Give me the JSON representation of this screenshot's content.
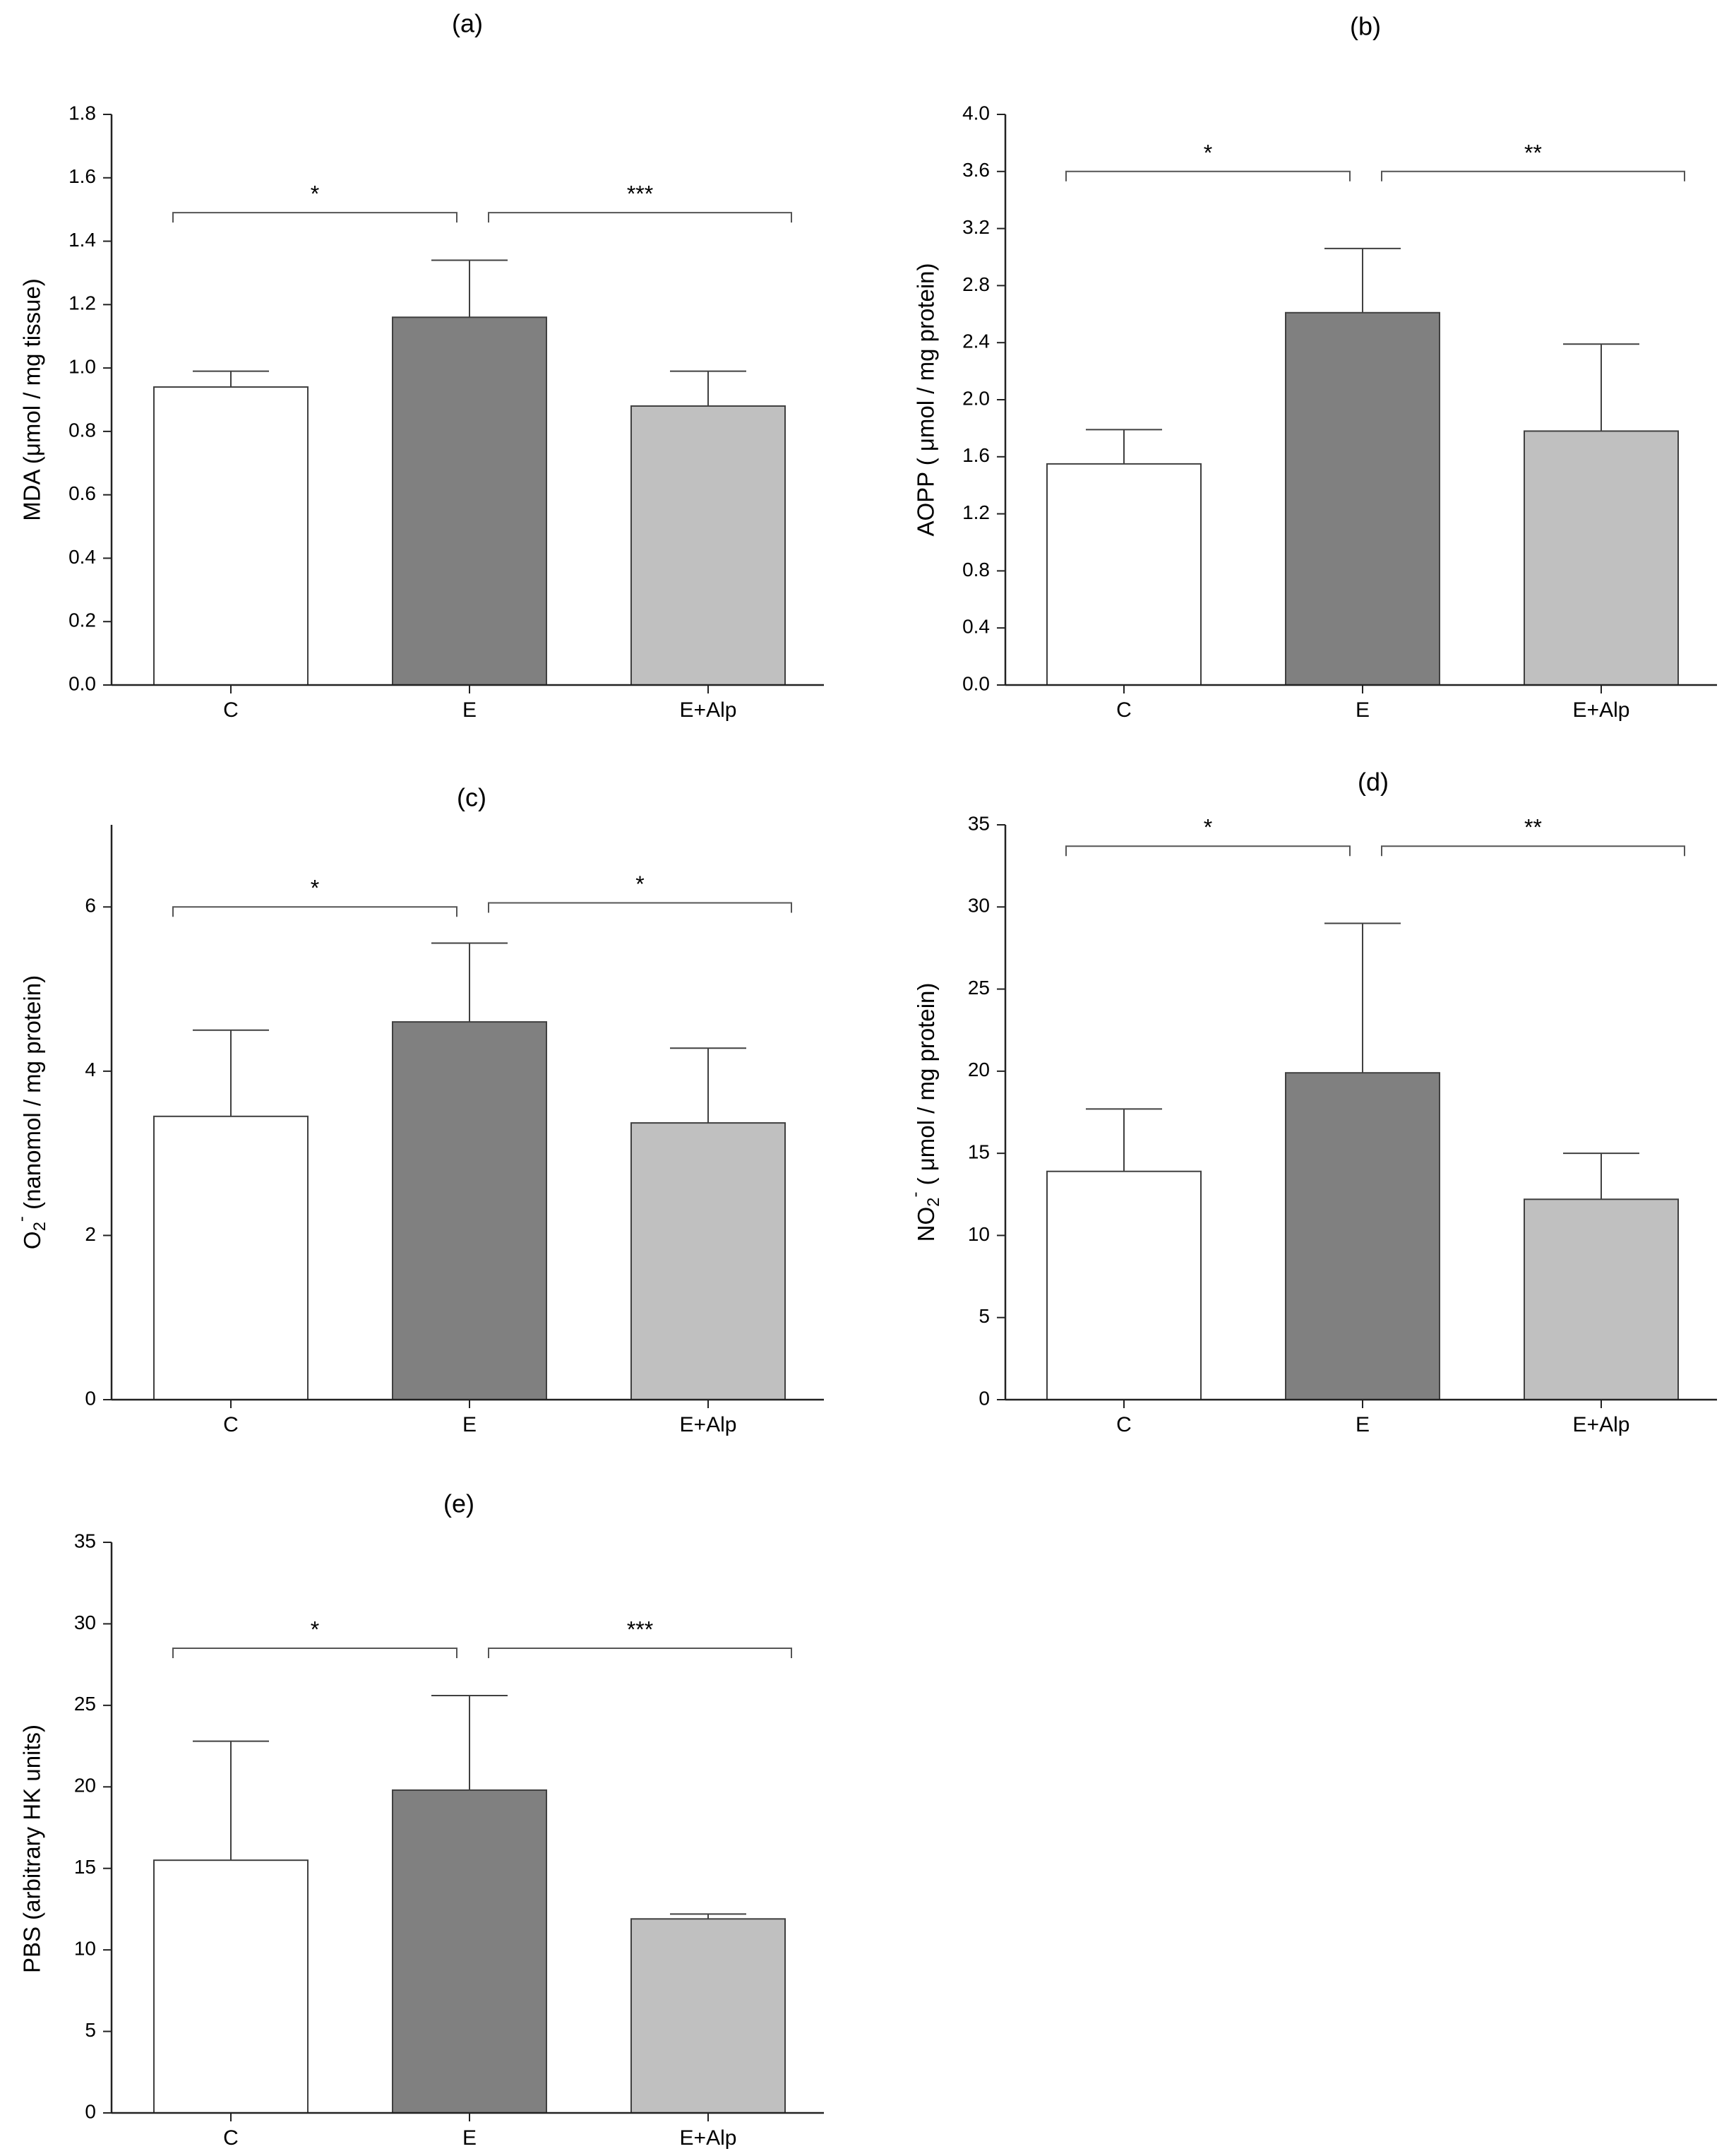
{
  "colors": {
    "C": "#ffffff",
    "E": "#808080",
    "E+Alp": "#c0c0c0",
    "stroke": "#404040"
  },
  "chart_data": [
    {
      "id": "a",
      "type": "bar",
      "panel_label": "(a)",
      "ylabel": "MDA (μmol / mg tissue)",
      "categories": [
        "C",
        "E",
        "E+Alp"
      ],
      "values": [
        0.94,
        1.16,
        0.88
      ],
      "errors": [
        0.05,
        0.18,
        0.11
      ],
      "ylim": [
        0,
        1.8
      ],
      "yticks": [
        0,
        0.2,
        0.4,
        0.6,
        0.8,
        1.0,
        1.2,
        1.4,
        1.6,
        1.8
      ],
      "tick_labels": [
        "0.0",
        "0.2",
        "0.4",
        "0.6",
        "0.8",
        "1.0",
        "1.2",
        "1.4",
        "1.6",
        "1.8"
      ],
      "significance": [
        {
          "from": 0,
          "to": 1,
          "label": "*",
          "y": 1.49
        },
        {
          "from": 1,
          "to": 2,
          "label": "***",
          "y": 1.49
        }
      ]
    },
    {
      "id": "b",
      "type": "bar",
      "panel_label": "(b)",
      "ylabel": "AOPP ( μmol / mg protein)",
      "categories": [
        "C",
        "E",
        "E+Alp"
      ],
      "values": [
        1.55,
        2.61,
        1.78
      ],
      "errors": [
        0.24,
        0.45,
        0.61
      ],
      "ylim": [
        0,
        4.0
      ],
      "yticks": [
        0,
        0.4,
        0.8,
        1.2,
        1.6,
        2.0,
        2.4,
        2.8,
        3.2,
        3.6,
        4.0
      ],
      "tick_labels": [
        "0.0",
        "0.4",
        "0.8",
        "1.2",
        "1.6",
        "2.0",
        "2.4",
        "2.8",
        "3.2",
        "3.6",
        "4.0"
      ],
      "significance": [
        {
          "from": 0,
          "to": 1,
          "label": "*",
          "y": 3.6
        },
        {
          "from": 1,
          "to": 2,
          "label": "**",
          "y": 3.6
        }
      ]
    },
    {
      "id": "c",
      "type": "bar",
      "panel_label": "(c)",
      "ylabel": "O2- (nanomol / mg protein)",
      "ylabel_parts": {
        "main": "O",
        "sub": "2",
        "sup": "-",
        "rest": " (nanomol / mg protein)"
      },
      "categories": [
        "C",
        "E",
        "E+Alp"
      ],
      "values": [
        3.45,
        4.6,
        3.37
      ],
      "errors": [
        1.05,
        0.96,
        0.91
      ],
      "ylim": [
        0,
        7
      ],
      "yticks": [
        0,
        2,
        4,
        6
      ],
      "tick_labels": [
        "0",
        "2",
        "4",
        "6"
      ],
      "significance": [
        {
          "from": 0,
          "to": 1,
          "label": "*",
          "y": 6.0
        },
        {
          "from": 1,
          "to": 2,
          "label": "*",
          "y": 6.05
        }
      ]
    },
    {
      "id": "d",
      "type": "bar",
      "panel_label": "(d)",
      "ylabel": "NO2- ( μmol / mg protein)",
      "ylabel_parts": {
        "main": "NO",
        "sub": "2",
        "sup": "-",
        "rest": " ( μmol / mg protein)"
      },
      "categories": [
        "C",
        "E",
        "E+Alp"
      ],
      "values": [
        13.9,
        19.9,
        12.2
      ],
      "errors": [
        3.8,
        9.1,
        2.8
      ],
      "ylim": [
        0,
        35
      ],
      "yticks": [
        0,
        5,
        10,
        15,
        20,
        25,
        30,
        35
      ],
      "tick_labels": [
        "0",
        "5",
        "10",
        "15",
        "20",
        "25",
        "30",
        "35"
      ],
      "significance": [
        {
          "from": 0,
          "to": 1,
          "label": "*",
          "y": 33.7
        },
        {
          "from": 1,
          "to": 2,
          "label": "**",
          "y": 33.7
        }
      ]
    },
    {
      "id": "e",
      "type": "bar",
      "panel_label": "(e)",
      "ylabel": "PBS (arbitrary HK units)",
      "categories": [
        "C",
        "E",
        "E+Alp"
      ],
      "values": [
        15.5,
        19.8,
        11.9
      ],
      "errors": [
        7.3,
        5.8,
        0.3
      ],
      "ylim": [
        0,
        35
      ],
      "yticks": [
        0,
        5,
        10,
        15,
        20,
        25,
        30,
        35
      ],
      "tick_labels": [
        "0",
        "5",
        "10",
        "15",
        "20",
        "25",
        "30",
        "35"
      ],
      "significance": [
        {
          "from": 0,
          "to": 1,
          "label": "*",
          "y": 28.5
        },
        {
          "from": 1,
          "to": 2,
          "label": "***",
          "y": 28.5
        }
      ]
    }
  ]
}
